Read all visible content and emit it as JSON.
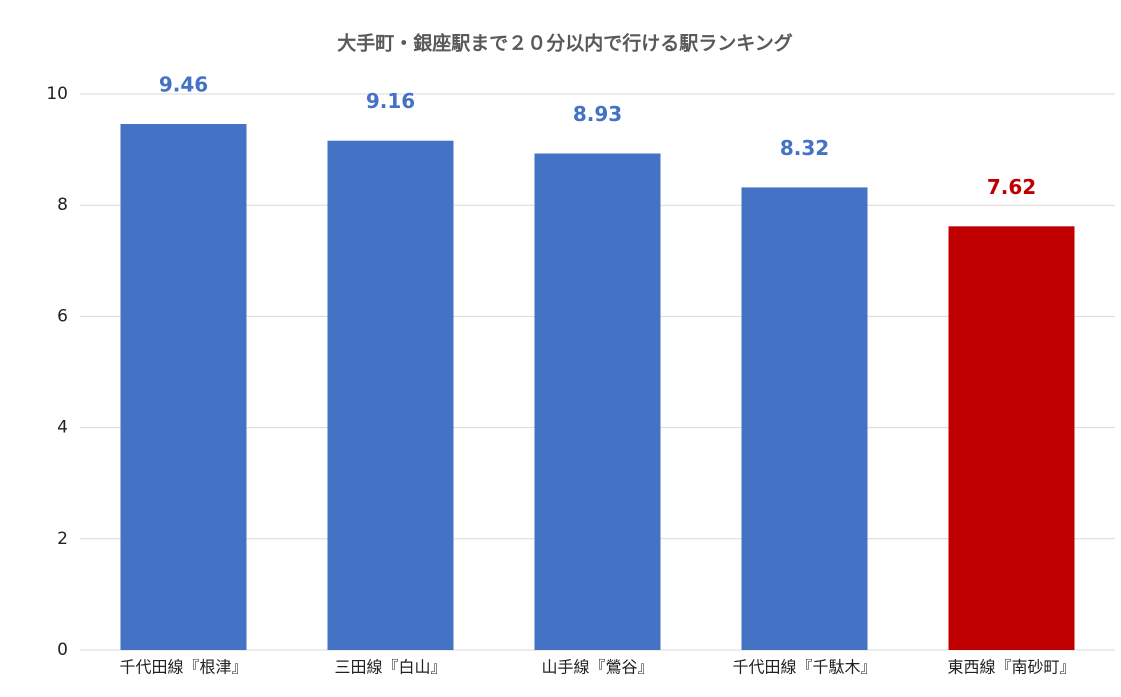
{
  "chart_data": {
    "type": "bar",
    "title": "大手町・銀座駅まで２０分以内で行ける駅ランキング",
    "categories": [
      "千代田線『根津』",
      "三田線『白山』",
      "山手線『鶯谷』",
      "千代田線『千駄木』",
      "東西線『南砂町』"
    ],
    "values": [
      9.46,
      9.16,
      8.93,
      8.32,
      7.62
    ],
    "colors": [
      "#4472c4",
      "#4472c4",
      "#4472c4",
      "#4472c4",
      "#c00000"
    ],
    "ylim": [
      0,
      10
    ],
    "yticks": [
      0,
      2,
      4,
      6,
      8,
      10
    ],
    "grid": true
  }
}
